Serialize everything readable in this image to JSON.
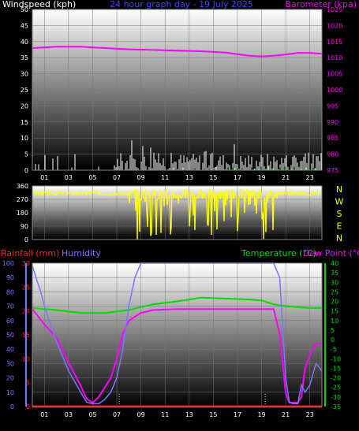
{
  "chart_data": [
    {
      "type": "line",
      "title": "24 hour graph day - 19 July 2025",
      "ylabel_left": "Windspeed (kph)",
      "ylabel_right": "Barometer (kpa)",
      "x_ticks": [
        "01",
        "03",
        "05",
        "07",
        "09",
        "11",
        "13",
        "15",
        "17",
        "19",
        "21",
        "23"
      ],
      "yleft_ticks": [
        "0",
        "5",
        "10",
        "15",
        "20",
        "25",
        "30",
        "35",
        "40",
        "45",
        "50"
      ],
      "yright_ticks": [
        "975",
        "980",
        "985",
        "990",
        "995",
        "1000",
        "1005",
        "1010",
        "1015",
        "1020",
        "1025"
      ],
      "yleft_range": [
        0,
        50
      ],
      "yright_range": [
        975,
        1025
      ],
      "grid": true,
      "colors": {
        "wind": "#ffffff",
        "gust": "#00dd00",
        "barometer": "#ff00ff",
        "left_label": "#ffffff",
        "right_label": "#ff00ff",
        "title": "#4444ff"
      },
      "series": [
        {
          "name": "Barometer (kpa)",
          "axis": "right",
          "x": [
            0,
            2,
            4,
            6,
            8,
            10,
            12,
            14,
            16,
            18,
            19,
            20,
            21,
            22,
            23,
            24
          ],
          "y": [
            1013,
            1013.4,
            1013.4,
            1013,
            1012.6,
            1012.4,
            1012.2,
            1012,
            1011.6,
            1010.6,
            1010.4,
            1010.6,
            1011,
            1011.5,
            1011.5,
            1011.2
          ]
        }
      ]
    },
    {
      "type": "scatter",
      "yleft_ticks": [
        "360",
        "270",
        "180",
        "90",
        "0"
      ],
      "yleft_range": [
        0,
        360
      ],
      "yright_ticks": [
        "N",
        "W",
        "S",
        "E",
        "N"
      ],
      "grid": true,
      "colors": {
        "direction": "#ffff00"
      }
    },
    {
      "type": "line",
      "ylabel_rain": "Rainfall (mm)",
      "ylabel_humidity": "Humidity",
      "ylabel_temp": "Temperature (°C)",
      "ylabel_dew": "Dew Point (°C)",
      "x_ticks": [
        "01",
        "03",
        "05",
        "07",
        "09",
        "11",
        "13",
        "15",
        "17",
        "19",
        "21",
        "23"
      ],
      "humidity_ticks": [
        "0",
        "10",
        "20",
        "30",
        "40",
        "50",
        "60",
        "70",
        "80",
        "90",
        "100"
      ],
      "rain_ticks": [
        "0",
        "5",
        "10",
        "15",
        "20",
        "25",
        "30"
      ],
      "temp_ticks": [
        "-35",
        "-30",
        "-25",
        "-20",
        "-15",
        "-10",
        "-5",
        "0",
        "5",
        "10",
        "15",
        "20",
        "25",
        "30",
        "35",
        "40"
      ],
      "humidity_range": [
        0,
        100
      ],
      "rain_range": [
        0,
        30
      ],
      "temp_range": [
        -35,
        40
      ],
      "grid": true,
      "colors": {
        "rain": "#ff0000",
        "humidity": "#7777ff",
        "temperature": "#00dd00",
        "dewpoint": "#ff00ff"
      },
      "series": [
        {
          "name": "Temperature (°C)",
          "axis": "temp",
          "x": [
            0,
            2,
            4,
            6,
            8,
            9,
            10,
            12,
            14,
            16,
            18,
            19,
            20,
            21,
            22,
            23,
            24
          ],
          "y": [
            16.5,
            15.5,
            14,
            14,
            15.5,
            17,
            18.5,
            20,
            22,
            21.5,
            21,
            20.5,
            18.5,
            17.5,
            17,
            16.5,
            16.5
          ]
        },
        {
          "name": "Dew Point (°C)",
          "axis": "temp",
          "x": [
            0,
            0.5,
            1,
            2,
            3,
            4,
            4.5,
            5,
            5.5,
            6,
            6.5,
            7,
            7.5,
            8,
            9,
            10,
            12,
            16,
            19,
            20,
            20.5,
            21,
            21.3,
            21.6,
            22,
            22.3,
            22.6,
            23,
            23.5,
            24
          ],
          "y": [
            16,
            12,
            8,
            1,
            -12,
            -24,
            -31,
            -33,
            -30,
            -25,
            -20,
            -10,
            3,
            10,
            14,
            15.5,
            16,
            16,
            16,
            16,
            3,
            -28,
            -33,
            -33,
            -33,
            -30,
            -15,
            -8,
            -2,
            -2
          ]
        },
        {
          "name": "Humidity",
          "axis": "humidity",
          "x": [
            0,
            0.3,
            0.7,
            1,
            2,
            3,
            4,
            4.5,
            5,
            5.5,
            6,
            6.5,
            7,
            7.5,
            8,
            8.5,
            9,
            10,
            12,
            16,
            19,
            20,
            20.5,
            21,
            21.3,
            21.6,
            22,
            22.3,
            22.6,
            23,
            23.5,
            24
          ],
          "y": [
            98,
            90,
            80,
            70,
            45,
            25,
            10,
            3,
            2,
            2,
            5,
            10,
            20,
            40,
            70,
            90,
            100,
            100,
            100,
            100,
            100,
            100,
            90,
            20,
            3,
            2,
            2,
            15,
            10,
            15,
            30,
            25
          ]
        },
        {
          "name": "Rainfall (mm)",
          "axis": "rain",
          "x": [
            0,
            24
          ],
          "y": [
            0,
            0
          ]
        }
      ]
    }
  ]
}
